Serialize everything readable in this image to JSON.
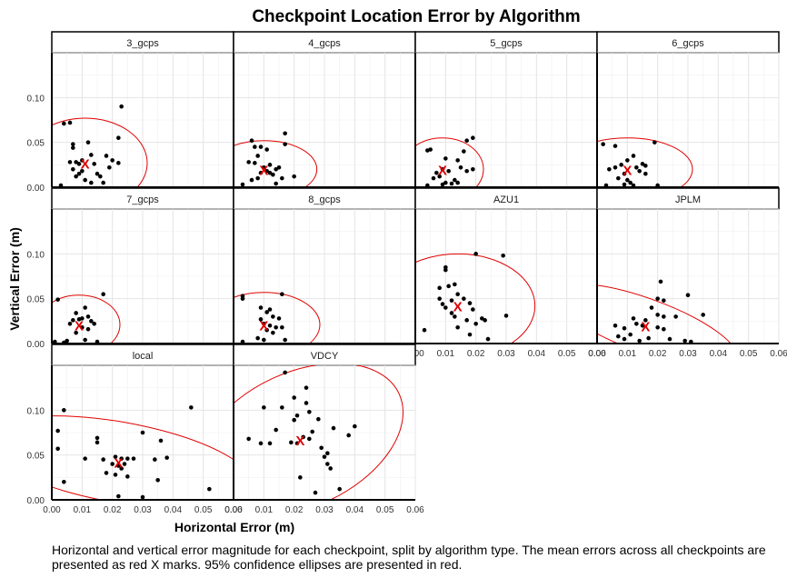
{
  "chart_data": {
    "type": "scatter",
    "title": "Checkpoint Location Error by Algorithm",
    "xlabel": "Horizontal Error (m)",
    "ylabel": "Vertical Error (m)",
    "xlim": [
      0,
      0.06
    ],
    "ylim": [
      0,
      0.15
    ],
    "x_ticks": [
      0.0,
      0.01,
      0.02,
      0.03,
      0.04,
      0.05,
      0.06
    ],
    "x_tick_labels": [
      "0.00",
      "0.01",
      "0.02",
      "0.03",
      "0.04",
      "0.05",
      "0.06"
    ],
    "y_ticks": [
      0.0,
      0.05,
      0.1
    ],
    "y_tick_labels": [
      "0.00",
      "0.05",
      "0.10"
    ],
    "grid": true,
    "mean_marker": "X",
    "mean_color": "#e00000",
    "ellipse_color": "#e00000",
    "point_color": "#000000",
    "caption": "Horizontal and vertical error magnitude for each checkpoint, split by algorithm type. The mean errors across all checkpoints are presented as red X marks. 95% confidence ellipses are presented in red.",
    "panels": [
      {
        "name": "3_gcps",
        "mean": [
          0.011,
          0.027
        ],
        "ellipse": {
          "cx": 0.011,
          "cy": 0.027,
          "rx": 0.0205,
          "ry": 0.05,
          "angle": 0
        },
        "points": [
          [
            0.004,
            0.071
          ],
          [
            0.006,
            0.072
          ],
          [
            0.007,
            0.048
          ],
          [
            0.007,
            0.044
          ],
          [
            0.006,
            0.028
          ],
          [
            0.008,
            0.028
          ],
          [
            0.009,
            0.026
          ],
          [
            0.01,
            0.03
          ],
          [
            0.012,
            0.05
          ],
          [
            0.013,
            0.036
          ],
          [
            0.014,
            0.026
          ],
          [
            0.015,
            0.015
          ],
          [
            0.016,
            0.012
          ],
          [
            0.018,
            0.035
          ],
          [
            0.019,
            0.022
          ],
          [
            0.02,
            0.03
          ],
          [
            0.022,
            0.027
          ],
          [
            0.022,
            0.055
          ],
          [
            0.023,
            0.09
          ],
          [
            0.007,
            0.02
          ],
          [
            0.008,
            0.012
          ],
          [
            0.011,
            0.008
          ],
          [
            0.013,
            0.005
          ],
          [
            0.017,
            0.005
          ],
          [
            0.003,
            0.002
          ],
          [
            0.009,
            0.015
          ],
          [
            0.01,
            0.018
          ]
        ]
      },
      {
        "name": "4_gcps",
        "mean": [
          0.01,
          0.02
        ],
        "ellipse": {
          "cx": 0.01,
          "cy": 0.02,
          "rx": 0.0175,
          "ry": 0.032,
          "angle": 0
        },
        "points": [
          [
            0.006,
            0.052
          ],
          [
            0.007,
            0.045
          ],
          [
            0.009,
            0.045
          ],
          [
            0.011,
            0.042
          ],
          [
            0.017,
            0.06
          ],
          [
            0.017,
            0.048
          ],
          [
            0.008,
            0.035
          ],
          [
            0.005,
            0.028
          ],
          [
            0.007,
            0.027
          ],
          [
            0.01,
            0.022
          ],
          [
            0.011,
            0.018
          ],
          [
            0.009,
            0.016
          ],
          [
            0.012,
            0.016
          ],
          [
            0.013,
            0.014
          ],
          [
            0.014,
            0.02
          ],
          [
            0.015,
            0.022
          ],
          [
            0.012,
            0.025
          ],
          [
            0.008,
            0.01
          ],
          [
            0.006,
            0.008
          ],
          [
            0.003,
            0.003
          ],
          [
            0.014,
            0.004
          ],
          [
            0.02,
            0.012
          ],
          [
            0.016,
            0.01
          ]
        ]
      },
      {
        "name": "5_gcps",
        "mean": [
          0.009,
          0.02
        ],
        "ellipse": {
          "cx": 0.009,
          "cy": 0.02,
          "rx": 0.0135,
          "ry": 0.035,
          "angle": 0
        },
        "points": [
          [
            0.004,
            0.041
          ],
          [
            0.005,
            0.042
          ],
          [
            0.01,
            0.032
          ],
          [
            0.017,
            0.052
          ],
          [
            0.019,
            0.055
          ],
          [
            0.016,
            0.04
          ],
          [
            0.014,
            0.03
          ],
          [
            0.015,
            0.022
          ],
          [
            0.017,
            0.018
          ],
          [
            0.019,
            0.02
          ],
          [
            0.009,
            0.02
          ],
          [
            0.011,
            0.018
          ],
          [
            0.007,
            0.016
          ],
          [
            0.008,
            0.012
          ],
          [
            0.006,
            0.01
          ],
          [
            0.01,
            0.005
          ],
          [
            0.012,
            0.004
          ],
          [
            0.014,
            0.005
          ],
          [
            0.009,
            0.003
          ],
          [
            0.004,
            0.002
          ],
          [
            0.013,
            0.008
          ]
        ]
      },
      {
        "name": "6_gcps",
        "mean": [
          0.01,
          0.02
        ],
        "ellipse": {
          "cx": 0.01,
          "cy": 0.02,
          "rx": 0.0215,
          "ry": 0.035,
          "angle": 0
        },
        "points": [
          [
            0.002,
            0.048
          ],
          [
            0.006,
            0.046
          ],
          [
            0.019,
            0.05
          ],
          [
            0.012,
            0.035
          ],
          [
            0.01,
            0.03
          ],
          [
            0.008,
            0.025
          ],
          [
            0.006,
            0.022
          ],
          [
            0.004,
            0.02
          ],
          [
            0.015,
            0.026
          ],
          [
            0.016,
            0.024
          ],
          [
            0.013,
            0.022
          ],
          [
            0.014,
            0.018
          ],
          [
            0.016,
            0.015
          ],
          [
            0.009,
            0.015
          ],
          [
            0.007,
            0.01
          ],
          [
            0.01,
            0.008
          ],
          [
            0.011,
            0.005
          ],
          [
            0.009,
            0.003
          ],
          [
            0.012,
            0.002
          ],
          [
            0.02,
            0.002
          ],
          [
            0.003,
            0.002
          ]
        ]
      },
      {
        "name": "7_gcps",
        "mean": [
          0.009,
          0.021
        ],
        "ellipse": {
          "cx": 0.009,
          "cy": 0.021,
          "rx": 0.0135,
          "ry": 0.033,
          "angle": 0
        },
        "points": [
          [
            0.002,
            0.049
          ],
          [
            0.017,
            0.055
          ],
          [
            0.008,
            0.034
          ],
          [
            0.011,
            0.04
          ],
          [
            0.012,
            0.03
          ],
          [
            0.01,
            0.028
          ],
          [
            0.009,
            0.027
          ],
          [
            0.007,
            0.026
          ],
          [
            0.006,
            0.022
          ],
          [
            0.013,
            0.025
          ],
          [
            0.014,
            0.022
          ],
          [
            0.01,
            0.018
          ],
          [
            0.012,
            0.016
          ],
          [
            0.008,
            0.012
          ],
          [
            0.011,
            0.004
          ],
          [
            0.005,
            0.003
          ],
          [
            0.004,
            0.001
          ],
          [
            0.015,
            0.002
          ],
          [
            0.001,
            0.002
          ]
        ]
      },
      {
        "name": "8_gcps",
        "mean": [
          0.01,
          0.021
        ],
        "ellipse": {
          "cx": 0.01,
          "cy": 0.021,
          "rx": 0.0185,
          "ry": 0.036,
          "angle": 0
        },
        "points": [
          [
            0.003,
            0.053
          ],
          [
            0.003,
            0.05
          ],
          [
            0.016,
            0.055
          ],
          [
            0.009,
            0.04
          ],
          [
            0.012,
            0.038
          ],
          [
            0.011,
            0.035
          ],
          [
            0.013,
            0.03
          ],
          [
            0.009,
            0.027
          ],
          [
            0.015,
            0.028
          ],
          [
            0.01,
            0.022
          ],
          [
            0.012,
            0.02
          ],
          [
            0.014,
            0.018
          ],
          [
            0.016,
            0.018
          ],
          [
            0.011,
            0.015
          ],
          [
            0.013,
            0.012
          ],
          [
            0.008,
            0.006
          ],
          [
            0.01,
            0.004
          ],
          [
            0.017,
            0.004
          ],
          [
            0.003,
            0.002
          ]
        ]
      },
      {
        "name": "AZU1",
        "mean": [
          0.014,
          0.042
        ],
        "ellipse": {
          "cx": 0.014,
          "cy": 0.042,
          "rx": 0.0255,
          "ry": 0.058,
          "angle": 0
        },
        "points": [
          [
            0.01,
            0.085
          ],
          [
            0.01,
            0.082
          ],
          [
            0.02,
            0.1
          ],
          [
            0.029,
            0.098
          ],
          [
            0.013,
            0.066
          ],
          [
            0.011,
            0.064
          ],
          [
            0.008,
            0.062
          ],
          [
            0.014,
            0.055
          ],
          [
            0.016,
            0.05
          ],
          [
            0.018,
            0.045
          ],
          [
            0.019,
            0.038
          ],
          [
            0.009,
            0.044
          ],
          [
            0.01,
            0.04
          ],
          [
            0.012,
            0.034
          ],
          [
            0.013,
            0.03
          ],
          [
            0.017,
            0.026
          ],
          [
            0.02,
            0.022
          ],
          [
            0.022,
            0.028
          ],
          [
            0.023,
            0.026
          ],
          [
            0.03,
            0.031
          ],
          [
            0.014,
            0.018
          ],
          [
            0.024,
            0.005
          ],
          [
            0.003,
            0.015
          ],
          [
            0.018,
            0.01
          ],
          [
            0.012,
            0.048
          ],
          [
            0.008,
            0.05
          ]
        ]
      },
      {
        "name": "JPLM",
        "mean": [
          0.016,
          0.02
        ],
        "ellipse": {
          "cx": 0.016,
          "cy": 0.02,
          "rx": 0.032,
          "ry": 0.03,
          "angle": 20
        },
        "points": [
          [
            0.021,
            0.069
          ],
          [
            0.03,
            0.054
          ],
          [
            0.02,
            0.05
          ],
          [
            0.022,
            0.048
          ],
          [
            0.018,
            0.04
          ],
          [
            0.035,
            0.032
          ],
          [
            0.02,
            0.032
          ],
          [
            0.022,
            0.03
          ],
          [
            0.026,
            0.03
          ],
          [
            0.012,
            0.028
          ],
          [
            0.016,
            0.026
          ],
          [
            0.013,
            0.022
          ],
          [
            0.015,
            0.02
          ],
          [
            0.02,
            0.018
          ],
          [
            0.022,
            0.016
          ],
          [
            0.006,
            0.02
          ],
          [
            0.009,
            0.017
          ],
          [
            0.011,
            0.01
          ],
          [
            0.007,
            0.008
          ],
          [
            0.009,
            0.005
          ],
          [
            0.017,
            0.006
          ],
          [
            0.024,
            0.005
          ],
          [
            0.029,
            0.003
          ],
          [
            0.031,
            0.002
          ],
          [
            0.014,
            0.003
          ]
        ]
      },
      {
        "name": "local",
        "mean": [
          0.022,
          0.042
        ],
        "ellipse": {
          "cx": 0.022,
          "cy": 0.042,
          "rx": 0.045,
          "ry": 0.045,
          "angle": 10
        },
        "points": [
          [
            0.002,
            0.077
          ],
          [
            0.004,
            0.1
          ],
          [
            0.002,
            0.057
          ],
          [
            0.046,
            0.103
          ],
          [
            0.03,
            0.075
          ],
          [
            0.015,
            0.069
          ],
          [
            0.015,
            0.064
          ],
          [
            0.036,
            0.066
          ],
          [
            0.038,
            0.047
          ],
          [
            0.034,
            0.045
          ],
          [
            0.021,
            0.048
          ],
          [
            0.023,
            0.046
          ],
          [
            0.025,
            0.046
          ],
          [
            0.027,
            0.046
          ],
          [
            0.02,
            0.04
          ],
          [
            0.022,
            0.038
          ],
          [
            0.023,
            0.035
          ],
          [
            0.024,
            0.04
          ],
          [
            0.011,
            0.046
          ],
          [
            0.017,
            0.045
          ],
          [
            0.018,
            0.03
          ],
          [
            0.021,
            0.028
          ],
          [
            0.025,
            0.026
          ],
          [
            0.035,
            0.022
          ],
          [
            0.004,
            0.02
          ],
          [
            0.022,
            0.004
          ],
          [
            0.03,
            0.003
          ],
          [
            0.052,
            0.012
          ]
        ]
      },
      {
        "name": "VDCY",
        "mean": [
          0.022,
          0.067
        ],
        "ellipse": {
          "cx": 0.022,
          "cy": 0.067,
          "rx": 0.036,
          "ry": 0.075,
          "angle": -25
        },
        "points": [
          [
            0.017,
            0.142
          ],
          [
            0.024,
            0.125
          ],
          [
            0.02,
            0.114
          ],
          [
            0.024,
            0.108
          ],
          [
            0.016,
            0.103
          ],
          [
            0.01,
            0.103
          ],
          [
            0.025,
            0.098
          ],
          [
            0.021,
            0.094
          ],
          [
            0.02,
            0.089
          ],
          [
            0.028,
            0.09
          ],
          [
            0.04,
            0.082
          ],
          [
            0.033,
            0.08
          ],
          [
            0.026,
            0.076
          ],
          [
            0.038,
            0.072
          ],
          [
            0.014,
            0.078
          ],
          [
            0.012,
            0.063
          ],
          [
            0.019,
            0.064
          ],
          [
            0.021,
            0.063
          ],
          [
            0.023,
            0.07
          ],
          [
            0.025,
            0.068
          ],
          [
            0.029,
            0.058
          ],
          [
            0.031,
            0.052
          ],
          [
            0.03,
            0.048
          ],
          [
            0.031,
            0.04
          ],
          [
            0.032,
            0.035
          ],
          [
            0.022,
            0.025
          ],
          [
            0.027,
            0.008
          ],
          [
            0.035,
            0.012
          ],
          [
            0.005,
            0.068
          ],
          [
            0.009,
            0.063
          ]
        ]
      }
    ]
  }
}
